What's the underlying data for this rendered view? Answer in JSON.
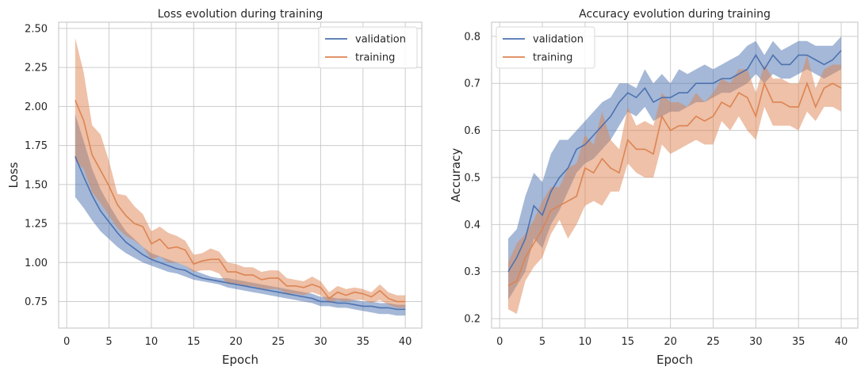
{
  "colors": {
    "validation": "#4c72b0",
    "training": "#dd8452",
    "grid": "#cccccc",
    "frame": "#cccccc",
    "text": "#262626"
  },
  "chart_data": [
    {
      "type": "line",
      "title": "Loss evolution during training",
      "xlabel": "Epoch",
      "ylabel": "Loss",
      "xlim": [
        -0.95,
        41.95
      ],
      "ylim": [
        0.58,
        2.54
      ],
      "xticks": [
        0,
        5,
        10,
        15,
        20,
        25,
        30,
        35,
        40
      ],
      "xtick_labels": [
        "0",
        "5",
        "10",
        "15",
        "20",
        "25",
        "30",
        "35",
        "40"
      ],
      "yticks": [
        0.75,
        1.0,
        1.25,
        1.5,
        1.75,
        2.0,
        2.25,
        2.5
      ],
      "ytick_labels": [
        "0.75",
        "1.00",
        "1.25",
        "1.50",
        "1.75",
        "2.00",
        "2.25",
        "2.50"
      ],
      "grid": true,
      "legend": "top-right",
      "x": [
        1,
        2,
        3,
        4,
        5,
        6,
        7,
        8,
        9,
        10,
        11,
        12,
        13,
        14,
        15,
        16,
        17,
        18,
        19,
        20,
        21,
        22,
        23,
        24,
        25,
        26,
        27,
        28,
        29,
        30,
        31,
        32,
        33,
        34,
        35,
        36,
        37,
        38,
        39,
        40
      ],
      "series": [
        {
          "name": "validation",
          "color_key": "validation",
          "values": [
            1.68,
            1.55,
            1.43,
            1.33,
            1.26,
            1.19,
            1.13,
            1.09,
            1.05,
            1.02,
            1.0,
            0.98,
            0.96,
            0.95,
            0.92,
            0.9,
            0.89,
            0.88,
            0.87,
            0.86,
            0.85,
            0.84,
            0.83,
            0.82,
            0.81,
            0.8,
            0.79,
            0.78,
            0.77,
            0.75,
            0.75,
            0.74,
            0.74,
            0.73,
            0.72,
            0.72,
            0.71,
            0.71,
            0.7,
            0.7
          ],
          "lower": [
            1.42,
            1.35,
            1.27,
            1.2,
            1.15,
            1.1,
            1.06,
            1.03,
            1.0,
            0.98,
            0.96,
            0.94,
            0.93,
            0.91,
            0.89,
            0.88,
            0.87,
            0.86,
            0.84,
            0.83,
            0.82,
            0.81,
            0.8,
            0.79,
            0.78,
            0.77,
            0.76,
            0.75,
            0.74,
            0.72,
            0.72,
            0.71,
            0.71,
            0.7,
            0.69,
            0.68,
            0.67,
            0.67,
            0.66,
            0.66
          ],
          "upper": [
            1.95,
            1.78,
            1.6,
            1.47,
            1.37,
            1.28,
            1.2,
            1.15,
            1.1,
            1.06,
            1.04,
            1.02,
            1.0,
            0.98,
            0.95,
            0.93,
            0.91,
            0.9,
            0.9,
            0.89,
            0.88,
            0.87,
            0.86,
            0.85,
            0.84,
            0.83,
            0.82,
            0.81,
            0.8,
            0.78,
            0.78,
            0.77,
            0.77,
            0.76,
            0.75,
            0.75,
            0.74,
            0.74,
            0.73,
            0.73
          ]
        },
        {
          "name": "training",
          "color_key": "training",
          "values": [
            2.04,
            1.91,
            1.69,
            1.59,
            1.49,
            1.37,
            1.3,
            1.25,
            1.23,
            1.12,
            1.15,
            1.09,
            1.1,
            1.08,
            0.99,
            1.01,
            1.02,
            1.02,
            0.94,
            0.94,
            0.92,
            0.92,
            0.89,
            0.9,
            0.9,
            0.85,
            0.85,
            0.84,
            0.86,
            0.84,
            0.77,
            0.81,
            0.79,
            0.81,
            0.8,
            0.78,
            0.82,
            0.77,
            0.75,
            0.75
          ],
          "lower": [
            1.65,
            1.6,
            1.45,
            1.38,
            1.3,
            1.22,
            1.17,
            1.14,
            1.1,
            1.02,
            1.04,
            1.0,
            1.0,
            0.98,
            0.94,
            0.95,
            0.95,
            0.93,
            0.86,
            0.86,
            0.85,
            0.85,
            0.83,
            0.83,
            0.83,
            0.8,
            0.8,
            0.79,
            0.81,
            0.79,
            0.74,
            0.76,
            0.75,
            0.76,
            0.76,
            0.74,
            0.76,
            0.73,
            0.71,
            0.71
          ],
          "upper": [
            2.44,
            2.22,
            1.88,
            1.82,
            1.65,
            1.44,
            1.43,
            1.36,
            1.31,
            1.2,
            1.23,
            1.19,
            1.17,
            1.14,
            1.05,
            1.06,
            1.09,
            1.07,
            1.0,
            0.99,
            0.97,
            0.97,
            0.94,
            0.95,
            0.95,
            0.9,
            0.89,
            0.88,
            0.91,
            0.88,
            0.81,
            0.85,
            0.83,
            0.84,
            0.83,
            0.81,
            0.86,
            0.81,
            0.79,
            0.79
          ]
        }
      ]
    },
    {
      "type": "line",
      "title": "Accuracy evolution during training",
      "xlabel": "Epoch",
      "ylabel": "Accuracy",
      "xlim": [
        -0.95,
        41.95
      ],
      "ylim": [
        0.18,
        0.83
      ],
      "xticks": [
        0,
        5,
        10,
        15,
        20,
        25,
        30,
        35,
        40
      ],
      "xtick_labels": [
        "0",
        "5",
        "10",
        "15",
        "20",
        "25",
        "30",
        "35",
        "40"
      ],
      "yticks": [
        0.2,
        0.3,
        0.4,
        0.5,
        0.6,
        0.7,
        0.8
      ],
      "ytick_labels": [
        "0.2",
        "0.3",
        "0.4",
        "0.5",
        "0.6",
        "0.7",
        "0.8"
      ],
      "grid": true,
      "legend": "top-left",
      "x": [
        1,
        2,
        3,
        4,
        5,
        6,
        7,
        8,
        9,
        10,
        11,
        12,
        13,
        14,
        15,
        16,
        17,
        18,
        19,
        20,
        21,
        22,
        23,
        24,
        25,
        26,
        27,
        28,
        29,
        30,
        31,
        32,
        33,
        34,
        35,
        36,
        37,
        38,
        39,
        40
      ],
      "series": [
        {
          "name": "validation",
          "color_key": "validation",
          "values": [
            0.3,
            0.33,
            0.37,
            0.44,
            0.42,
            0.47,
            0.5,
            0.52,
            0.56,
            0.57,
            0.59,
            0.61,
            0.63,
            0.66,
            0.68,
            0.67,
            0.69,
            0.66,
            0.67,
            0.67,
            0.68,
            0.68,
            0.7,
            0.7,
            0.7,
            0.71,
            0.71,
            0.72,
            0.73,
            0.76,
            0.73,
            0.76,
            0.74,
            0.74,
            0.76,
            0.76,
            0.75,
            0.74,
            0.75,
            0.77
          ],
          "lower": [
            0.24,
            0.27,
            0.3,
            0.37,
            0.35,
            0.4,
            0.43,
            0.47,
            0.51,
            0.53,
            0.54,
            0.56,
            0.58,
            0.61,
            0.64,
            0.63,
            0.65,
            0.62,
            0.63,
            0.64,
            0.64,
            0.65,
            0.66,
            0.66,
            0.67,
            0.68,
            0.68,
            0.69,
            0.7,
            0.72,
            0.7,
            0.72,
            0.71,
            0.71,
            0.72,
            0.73,
            0.72,
            0.71,
            0.72,
            0.73
          ],
          "upper": [
            0.37,
            0.39,
            0.46,
            0.51,
            0.49,
            0.55,
            0.58,
            0.58,
            0.6,
            0.62,
            0.64,
            0.66,
            0.67,
            0.7,
            0.7,
            0.69,
            0.73,
            0.7,
            0.72,
            0.7,
            0.73,
            0.72,
            0.73,
            0.74,
            0.73,
            0.74,
            0.75,
            0.76,
            0.78,
            0.79,
            0.76,
            0.79,
            0.77,
            0.78,
            0.79,
            0.79,
            0.78,
            0.78,
            0.78,
            0.8
          ]
        },
        {
          "name": "training",
          "color_key": "training",
          "values": [
            0.27,
            0.28,
            0.33,
            0.36,
            0.39,
            0.43,
            0.44,
            0.45,
            0.46,
            0.52,
            0.51,
            0.54,
            0.52,
            0.51,
            0.58,
            0.56,
            0.56,
            0.55,
            0.63,
            0.6,
            0.61,
            0.61,
            0.63,
            0.62,
            0.63,
            0.66,
            0.65,
            0.68,
            0.67,
            0.63,
            0.7,
            0.66,
            0.66,
            0.65,
            0.65,
            0.7,
            0.65,
            0.69,
            0.7,
            0.69
          ],
          "lower": [
            0.22,
            0.21,
            0.28,
            0.31,
            0.33,
            0.38,
            0.41,
            0.37,
            0.4,
            0.44,
            0.45,
            0.44,
            0.47,
            0.47,
            0.53,
            0.51,
            0.5,
            0.5,
            0.57,
            0.55,
            0.56,
            0.57,
            0.58,
            0.57,
            0.57,
            0.62,
            0.6,
            0.63,
            0.6,
            0.58,
            0.65,
            0.61,
            0.61,
            0.61,
            0.6,
            0.64,
            0.62,
            0.65,
            0.65,
            0.64
          ],
          "upper": [
            0.32,
            0.36,
            0.38,
            0.41,
            0.45,
            0.48,
            0.48,
            0.52,
            0.53,
            0.59,
            0.57,
            0.64,
            0.58,
            0.56,
            0.65,
            0.61,
            0.62,
            0.61,
            0.68,
            0.66,
            0.66,
            0.65,
            0.68,
            0.66,
            0.68,
            0.71,
            0.7,
            0.73,
            0.73,
            0.68,
            0.74,
            0.71,
            0.71,
            0.7,
            0.7,
            0.76,
            0.69,
            0.73,
            0.74,
            0.74
          ]
        }
      ]
    }
  ]
}
